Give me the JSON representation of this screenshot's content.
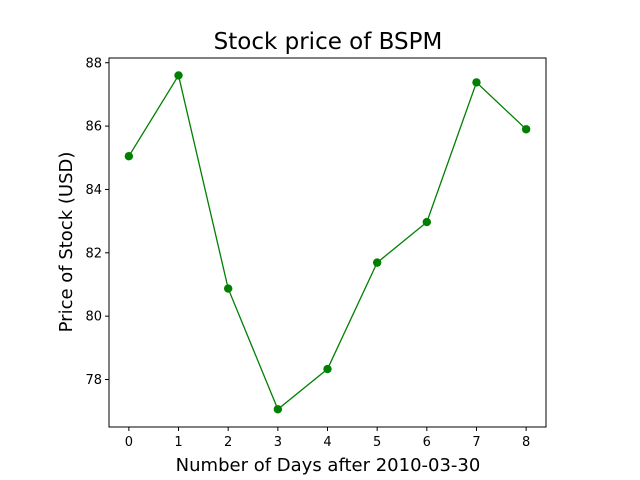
{
  "chart_data": {
    "type": "line",
    "title": "Stock price of BSPM",
    "xlabel": "Number of Days after 2010-03-30",
    "ylabel": "Price of Stock (USD)",
    "x": [
      0,
      1,
      2,
      3,
      4,
      5,
      6,
      7,
      8
    ],
    "series": [
      {
        "values": [
          85.05,
          87.6,
          80.87,
          77.06,
          78.33,
          81.69,
          82.97,
          87.38,
          85.9
        ]
      }
    ],
    "xlim": [
      -0.4,
      8.4
    ],
    "ylim": [
      76.5,
      88.15
    ],
    "xticks": [
      "0",
      "1",
      "2",
      "3",
      "4",
      "5",
      "6",
      "7",
      "8"
    ],
    "yticks": [
      "78",
      "80",
      "82",
      "84",
      "86",
      "88"
    ],
    "grid": false,
    "legend": "none",
    "colors": {
      "line": "#008000",
      "marker": "#008000"
    }
  }
}
